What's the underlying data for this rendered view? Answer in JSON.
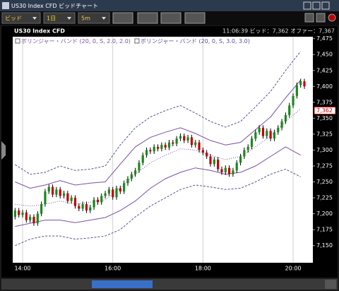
{
  "window": {
    "title": "US30 Index CFD ビッドチャート"
  },
  "toolbar": {
    "price_type": "ビッド",
    "period": "1日",
    "interval": "5m"
  },
  "chart_header": {
    "instrument": "US30 Index CFD",
    "quote": "11:06:39 ビッド：7,362 オファー：7,367"
  },
  "chart_data": {
    "type": "candlestick",
    "categories": [
      null,
      null,
      "14:00",
      null,
      null,
      null,
      null,
      null,
      null,
      null,
      null,
      null,
      null,
      null,
      null,
      null,
      null,
      null,
      null,
      null,
      null,
      null,
      null,
      null,
      null,
      null,
      "16:00",
      null,
      null,
      null,
      null,
      null,
      null,
      null,
      null,
      null,
      null,
      null,
      null,
      null,
      null,
      null,
      null,
      null,
      null,
      null,
      null,
      null,
      null,
      null,
      "18:00",
      null,
      null,
      null,
      null,
      null,
      null,
      null,
      null,
      null,
      null,
      null,
      null,
      null,
      null,
      null,
      null,
      null,
      null,
      null,
      null,
      null,
      null,
      null,
      "20:00",
      null,
      null,
      null
    ],
    "open": [
      7195,
      7205,
      7198,
      7202,
      7190,
      7195,
      7185,
      7200,
      7215,
      7235,
      7242,
      7230,
      7238,
      7228,
      7232,
      7220,
      7225,
      7212,
      7208,
      7215,
      7205,
      7210,
      7222,
      7218,
      7228,
      7232,
      7238,
      7226,
      7240,
      7235,
      7248,
      7255,
      7262,
      7268,
      7280,
      7292,
      7300,
      7298,
      7305,
      7302,
      7308,
      7304,
      7312,
      7310,
      7318,
      7322,
      7315,
      7320,
      7308,
      7312,
      7300,
      7296,
      7290,
      7278,
      7285,
      7270,
      7265,
      7272,
      7262,
      7268,
      7280,
      7290,
      7300,
      7305,
      7318,
      7328,
      7335,
      7322,
      7330,
      7318,
      7328,
      7335,
      7345,
      7355,
      7370,
      7385,
      7402,
      7408
    ],
    "high": [
      7209,
      7209,
      7206,
      7206,
      7199,
      7199,
      7204,
      7219,
      7239,
      7246,
      7246,
      7242,
      7242,
      7236,
      7236,
      7229,
      7229,
      7216,
      7219,
      7219,
      7214,
      7226,
      7226,
      7232,
      7236,
      7242,
      7242,
      7244,
      7244,
      7252,
      7259,
      7266,
      7272,
      7284,
      7296,
      7304,
      7304,
      7309,
      7309,
      7312,
      7312,
      7316,
      7316,
      7322,
      7326,
      7326,
      7324,
      7324,
      7316,
      7316,
      7304,
      7300,
      7294,
      7289,
      7289,
      7274,
      7276,
      7276,
      7272,
      7284,
      7294,
      7304,
      7309,
      7322,
      7332,
      7339,
      7339,
      7334,
      7334,
      7332,
      7339,
      7349,
      7359,
      7374,
      7389,
      7406,
      7412,
      7412
    ],
    "low": [
      7191,
      7194,
      7194,
      7186,
      7186,
      7181,
      7181,
      7196,
      7211,
      7231,
      7226,
      7226,
      7224,
      7224,
      7216,
      7216,
      7208,
      7204,
      7204,
      7201,
      7201,
      7206,
      7214,
      7214,
      7224,
      7228,
      7222,
      7222,
      7231,
      7231,
      7244,
      7251,
      7258,
      7264,
      7276,
      7288,
      7294,
      7294,
      7298,
      7298,
      7300,
      7300,
      7306,
      7306,
      7314,
      7311,
      7311,
      7304,
      7304,
      7296,
      7292,
      7286,
      7274,
      7274,
      7266,
      7261,
      7261,
      7258,
      7258,
      7264,
      7276,
      7286,
      7296,
      7301,
      7314,
      7324,
      7318,
      7318,
      7314,
      7314,
      7324,
      7331,
      7341,
      7351,
      7366,
      7381,
      7398,
      7396
    ],
    "close": [
      7205,
      7198,
      7202,
      7190,
      7195,
      7185,
      7200,
      7215,
      7235,
      7242,
      7230,
      7238,
      7228,
      7232,
      7220,
      7225,
      7212,
      7208,
      7215,
      7205,
      7210,
      7222,
      7218,
      7228,
      7232,
      7238,
      7226,
      7240,
      7235,
      7248,
      7255,
      7262,
      7268,
      7280,
      7292,
      7300,
      7298,
      7305,
      7302,
      7308,
      7304,
      7312,
      7310,
      7318,
      7322,
      7315,
      7320,
      7308,
      7312,
      7300,
      7296,
      7290,
      7278,
      7285,
      7270,
      7265,
      7272,
      7262,
      7268,
      7280,
      7290,
      7300,
      7305,
      7318,
      7328,
      7335,
      7322,
      7330,
      7318,
      7328,
      7335,
      7345,
      7355,
      7370,
      7385,
      7402,
      7408,
      7400
    ],
    "up_color": "#1a8a1a",
    "down_color": "#c00000",
    "indicators": [
      {
        "name": "ボリンジャー・バンド (20, 0, S, 2.0, 2.0)",
        "color": "#7a4fa8",
        "line_style": "solid",
        "middle_style": "dotted",
        "x": [
          0,
          4,
          8,
          12,
          16,
          20,
          24,
          28,
          32,
          36,
          40,
          44,
          48,
          52,
          56,
          60,
          64,
          68,
          72,
          76
        ],
        "upper": [
          7250,
          7240,
          7245,
          7252,
          7245,
          7248,
          7250,
          7278,
          7305,
          7320,
          7328,
          7335,
          7326,
          7315,
          7308,
          7312,
          7332,
          7352,
          7382,
          7410
        ],
        "middle": [
          7215,
          7212,
          7215,
          7220,
          7215,
          7218,
          7222,
          7240,
          7262,
          7280,
          7292,
          7302,
          7300,
          7292,
          7285,
          7290,
          7305,
          7322,
          7345,
          7365
        ],
        "lower": [
          7180,
          7185,
          7190,
          7190,
          7186,
          7190,
          7194,
          7205,
          7220,
          7240,
          7255,
          7265,
          7272,
          7268,
          7262,
          7265,
          7275,
          7290,
          7305,
          7292
        ]
      },
      {
        "name": "ボリンジャー・バンド (20, 0, S, 3.0, 3.0)",
        "color": "#5050a0",
        "line_style": "dashed",
        "x": [
          0,
          4,
          8,
          12,
          16,
          20,
          24,
          28,
          32,
          36,
          40,
          44,
          48,
          52,
          56,
          60,
          64,
          68,
          72,
          76
        ],
        "upper": [
          7277,
          7262,
          7265,
          7275,
          7268,
          7270,
          7275,
          7308,
          7335,
          7352,
          7362,
          7370,
          7358,
          7345,
          7336,
          7345,
          7368,
          7392,
          7425,
          7455
        ],
        "lower": [
          7150,
          7160,
          7165,
          7165,
          7160,
          7162,
          7165,
          7175,
          7195,
          7212,
          7225,
          7238,
          7245,
          7242,
          7238,
          7240,
          7250,
          7262,
          7270,
          7258
        ]
      }
    ],
    "price_marker": {
      "value": 7362,
      "label": "7,362",
      "color": "#c00000"
    },
    "ylim": [
      7123,
      7478
    ],
    "yticks": [
      {
        "value": 7150,
        "label": "7,150"
      },
      {
        "value": 7175,
        "label": "7,175"
      },
      {
        "value": 7200,
        "label": "7,200"
      },
      {
        "value": 7225,
        "label": "7,225"
      },
      {
        "value": 7250,
        "label": "7,250"
      },
      {
        "value": 7275,
        "label": "7,275"
      },
      {
        "value": 7300,
        "label": "7,300"
      },
      {
        "value": 7325,
        "label": "7,325"
      },
      {
        "value": 7350,
        "label": "7,350"
      },
      {
        "value": 7375,
        "label": "7,375"
      },
      {
        "value": 7400,
        "label": "7,400"
      },
      {
        "value": 7425,
        "label": "7,425"
      },
      {
        "value": 7450,
        "label": "7,450"
      },
      {
        "value": 7475,
        "label": "7,475"
      }
    ],
    "grid": true
  }
}
